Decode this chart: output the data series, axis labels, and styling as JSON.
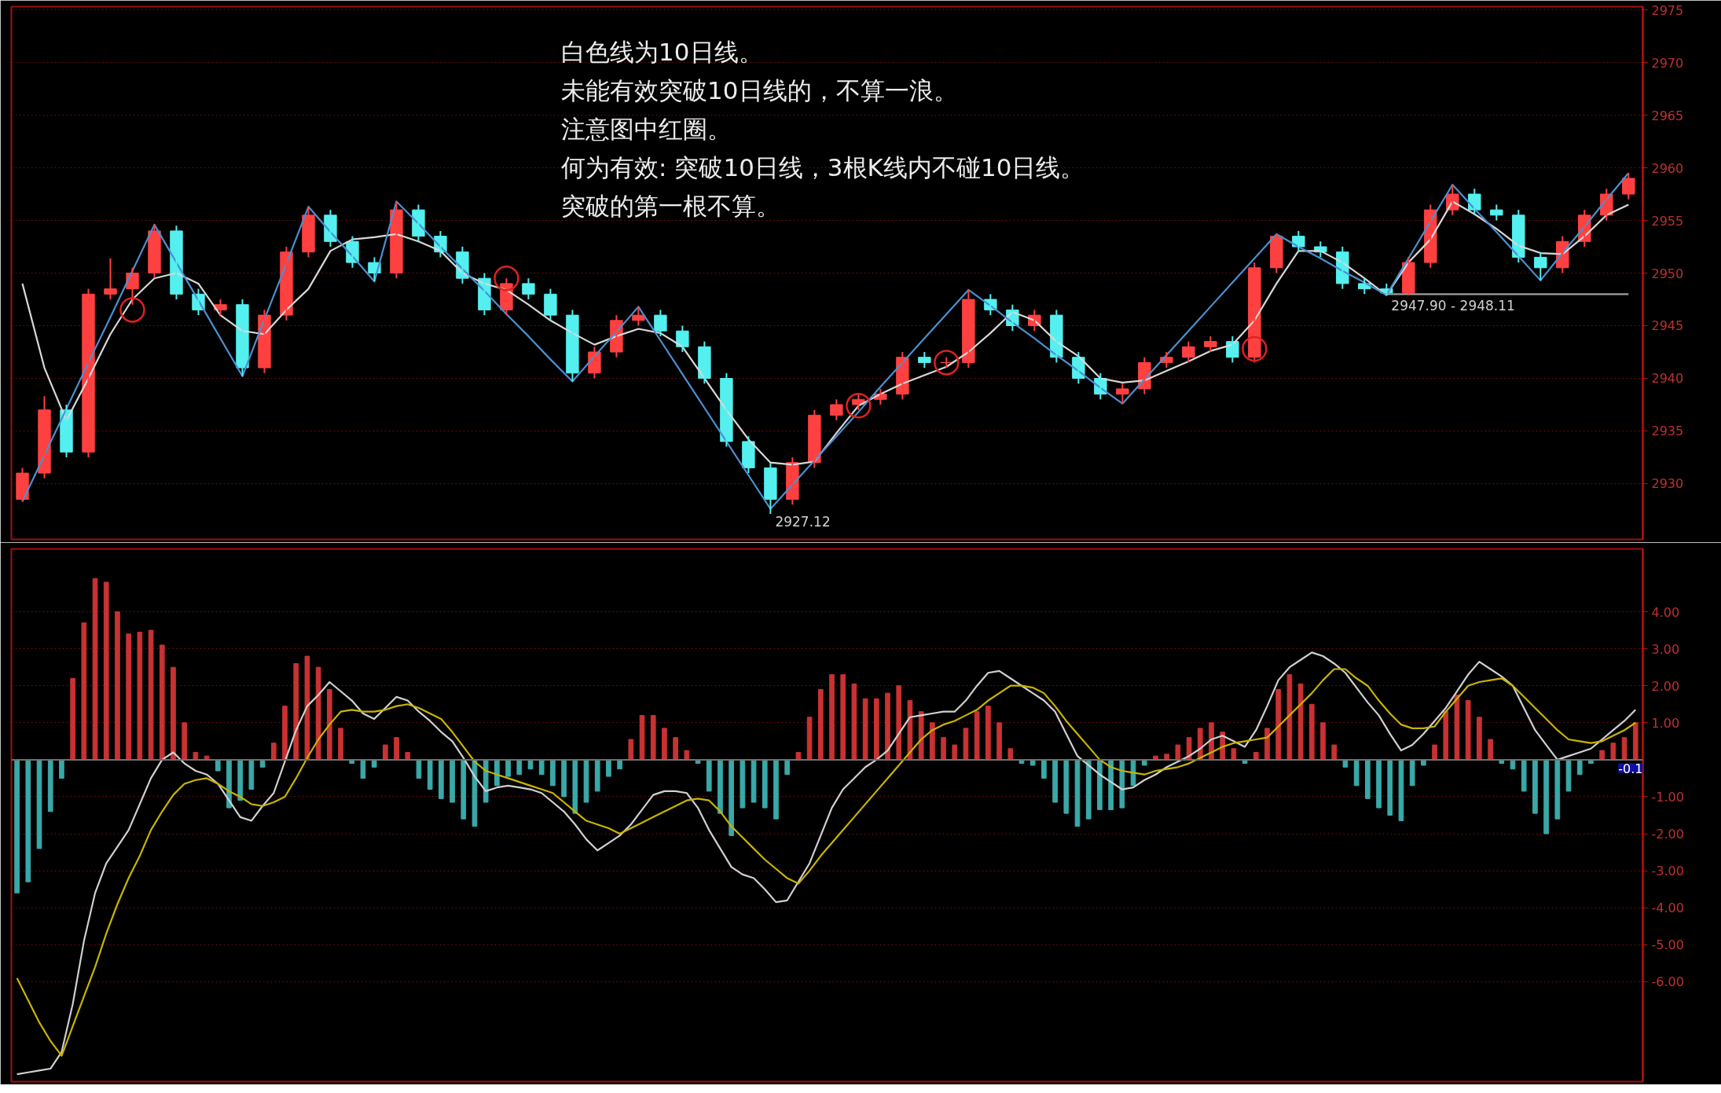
{
  "chart_data": [
    {
      "type": "candlestick",
      "ylim": [
        2924.7,
        2975.3
      ],
      "yticks": [
        2930,
        2935,
        2940,
        2945,
        2950,
        2955,
        2960,
        2965,
        2970,
        2975
      ],
      "grid": "y",
      "tick_labels": "y",
      "categories": [
        null,
        null,
        null,
        null,
        null,
        null,
        null,
        null,
        null,
        null,
        null,
        null,
        null,
        null,
        null,
        null,
        null,
        null,
        null,
        null,
        null,
        null,
        null,
        null,
        null,
        null,
        null,
        null,
        null,
        null,
        null,
        null,
        null,
        null,
        null,
        null,
        null,
        null,
        null,
        null,
        null,
        null,
        null,
        null,
        null,
        null,
        null,
        null,
        null,
        null,
        null,
        null,
        null,
        null,
        null,
        null,
        null,
        null,
        null,
        null,
        null,
        null,
        null,
        null,
        null,
        null,
        null,
        null,
        null,
        null,
        null,
        null,
        null,
        null
      ],
      "ohlc": [
        [
          2928.5,
          2931.5,
          2928.3,
          2931
        ],
        [
          2931,
          2938.3,
          2930.5,
          2937
        ],
        [
          2937,
          2937.5,
          2932.5,
          2933
        ],
        [
          2933,
          2948.5,
          2932.5,
          2948
        ],
        [
          2948,
          2951.4,
          2947.5,
          2948.5
        ],
        [
          2948.5,
          2950.5,
          2947,
          2950
        ],
        [
          2950,
          2954.6,
          2949.5,
          2954
        ],
        [
          2954,
          2954.5,
          2947.5,
          2948
        ],
        [
          2948,
          2948.5,
          2946,
          2946.5
        ],
        [
          2946.5,
          2947.5,
          2946,
          2947
        ],
        [
          2947,
          2947.5,
          2940.2,
          2941
        ],
        [
          2941,
          2946.5,
          2940.5,
          2946
        ],
        [
          2946,
          2952.5,
          2945.5,
          2952
        ],
        [
          2952,
          2956.3,
          2951.5,
          2955.5
        ],
        [
          2955.5,
          2956,
          2952.5,
          2953
        ],
        [
          2953,
          2953.5,
          2950.5,
          2951
        ],
        [
          2951,
          2951.5,
          2949.2,
          2950
        ],
        [
          2950,
          2956.8,
          2949.5,
          2956
        ],
        [
          2956,
          2956.5,
          2953,
          2953.5
        ],
        [
          2953.5,
          2954,
          2951.5,
          2952
        ],
        [
          2952,
          2952.5,
          2949,
          2949.5
        ],
        [
          2949.5,
          2950,
          2946,
          2946.5
        ],
        [
          2946.5,
          2949.5,
          2946,
          2949
        ],
        [
          2949,
          2949.5,
          2947.5,
          2948
        ],
        [
          2948,
          2948.5,
          2945.5,
          2946
        ],
        [
          2946,
          2946.5,
          2939.7,
          2940.5
        ],
        [
          2940.5,
          2943,
          2940,
          2942.5
        ],
        [
          2942.5,
          2946,
          2942,
          2945.5
        ],
        [
          2945.5,
          2946.8,
          2945,
          2946
        ],
        [
          2946,
          2946.5,
          2944,
          2944.5
        ],
        [
          2944.5,
          2945,
          2942.5,
          2943
        ],
        [
          2943,
          2943.5,
          2939.5,
          2940
        ],
        [
          2940,
          2940.5,
          2933.5,
          2934
        ],
        [
          2934,
          2934.5,
          2931,
          2931.5
        ],
        [
          2931.5,
          2932,
          2927.12,
          2928.5
        ],
        [
          2928.5,
          2932.5,
          2928,
          2932
        ],
        [
          2932,
          2937,
          2931.5,
          2936.5
        ],
        [
          2936.5,
          2938,
          2936,
          2937.5
        ],
        [
          2937.5,
          2938.5,
          2937,
          2938
        ],
        [
          2938,
          2939,
          2937.5,
          2938.5
        ],
        [
          2938.5,
          2942.5,
          2938,
          2942
        ],
        [
          2942,
          2942.5,
          2941,
          2941.5
        ],
        [
          2941.5,
          2942,
          2941,
          2941.5
        ],
        [
          2941.5,
          2948.4,
          2941,
          2947.5
        ],
        [
          2947.5,
          2948,
          2946,
          2946.5
        ],
        [
          2946.5,
          2947,
          2944.5,
          2945
        ],
        [
          2945,
          2946.5,
          2944.5,
          2946
        ],
        [
          2946,
          2946.5,
          2941.5,
          2942
        ],
        [
          2942,
          2942.5,
          2939.5,
          2940
        ],
        [
          2940,
          2940.5,
          2938,
          2938.5
        ],
        [
          2938.5,
          2939.5,
          2937.6,
          2939
        ],
        [
          2939,
          2942,
          2938.5,
          2941.5
        ],
        [
          2941.5,
          2942.5,
          2941,
          2942
        ],
        [
          2942,
          2943.5,
          2941.5,
          2943
        ],
        [
          2943,
          2944,
          2942.5,
          2943.5
        ],
        [
          2943.5,
          2944,
          2941.5,
          2942
        ],
        [
          2942,
          2951,
          2941.5,
          2950.5
        ],
        [
          2950.5,
          2953.7,
          2950,
          2953.5
        ],
        [
          2953.5,
          2954,
          2952,
          2952.5
        ],
        [
          2952.5,
          2953,
          2951.5,
          2952
        ],
        [
          2952,
          2952.5,
          2948.5,
          2949
        ],
        [
          2949,
          2949.5,
          2948,
          2948.5
        ],
        [
          2948.5,
          2949,
          2947.9,
          2948.11
        ],
        [
          2948.11,
          2951.5,
          2947.9,
          2951
        ],
        [
          2951,
          2956.5,
          2950.5,
          2956
        ],
        [
          2956,
          2958.4,
          2955.5,
          2957.5
        ],
        [
          2957.5,
          2958,
          2955.5,
          2956
        ],
        [
          2956,
          2956.5,
          2955,
          2955.5
        ],
        [
          2955.5,
          2956,
          2951,
          2951.5
        ],
        [
          2951.5,
          2952,
          2949.3,
          2950.5
        ],
        [
          2950.5,
          2953.5,
          2950,
          2953
        ],
        [
          2953,
          2956,
          2952.5,
          2955.5
        ],
        [
          2955.5,
          2958,
          2955,
          2957.5
        ],
        [
          2957.5,
          2959.5,
          2957,
          2959
        ]
      ],
      "series": [
        {
          "type": "line",
          "color": "#d8d8d8",
          "values": [
            2949,
            2941,
            2936,
            2940,
            2944.2,
            2947.5,
            2949.5,
            2950,
            2949,
            2946,
            2944.5,
            2944.2,
            2946.5,
            2948.5,
            2952.1,
            2953.2,
            2953.4,
            2953.7,
            2953,
            2952.1,
            2950,
            2949,
            2948.4,
            2947,
            2945.5,
            2944.3,
            2943.2,
            2944,
            2944.7,
            2944.3,
            2943,
            2940,
            2937,
            2934.2,
            2932,
            2931.8,
            2932.1,
            2934.8,
            2937.4,
            2938.5,
            2939.5,
            2940.3,
            2941.1,
            2942.5,
            2944.3,
            2946.3,
            2945.5,
            2943.5,
            2942.1,
            2940,
            2939.6,
            2939.8,
            2940.7,
            2941.6,
            2942.6,
            2943.2,
            2945.5,
            2949,
            2952.1,
            2952.1,
            2951,
            2949.5,
            2947.9,
            2951,
            2953.2,
            2956.8,
            2955.6,
            2954.2,
            2952.6,
            2951.9,
            2951.8,
            2953.5,
            2955.5,
            2956.5
          ]
        },
        {
          "type": "line",
          "color": "#4a90d0",
          "values": [
            2928.3,
            2932.7,
            2937.1,
            2941.5,
            2945.8,
            2950.2,
            2954.6,
            2951.0,
            2947.4,
            2943.8,
            2940.2,
            2945.6,
            2950.9,
            2956.3,
            2953.9,
            2951.6,
            2949.2,
            2956.8,
            2954.7,
            2952.5,
            2950.4,
            2948.3,
            2946.1,
            2944.0,
            2941.8,
            2939.7,
            2942.1,
            2944.4,
            2946.8,
            2943.6,
            2940.4,
            2937.2,
            2934.0,
            2930.8,
            2927.6,
            2929.9,
            2932.2,
            2934.5,
            2936.8,
            2939.2,
            2941.5,
            2943.8,
            2946.1,
            2948.4,
            2946.9,
            2945.3,
            2943.8,
            2942.2,
            2940.7,
            2939.1,
            2937.6,
            2939.9,
            2942.2,
            2944.5,
            2946.8,
            2949.1,
            2951.4,
            2953.7,
            2952.5,
            2951.4,
            2950.2,
            2949.1,
            2947.9,
            2951.4,
            2954.9,
            2958.4,
            2956.1,
            2953.9,
            2951.6,
            2949.3,
            2951.9,
            2954.4,
            2957.0,
            2959.5
          ]
        },
        {
          "type": "line",
          "color": "#a0a0a0",
          "values": [
            null,
            null,
            null,
            null,
            null,
            null,
            null,
            null,
            null,
            null,
            null,
            null,
            null,
            null,
            null,
            null,
            null,
            null,
            null,
            null,
            null,
            null,
            null,
            null,
            null,
            null,
            null,
            null,
            null,
            null,
            null,
            null,
            null,
            null,
            null,
            null,
            null,
            null,
            null,
            null,
            null,
            null,
            null,
            null,
            null,
            null,
            null,
            null,
            null,
            null,
            null,
            null,
            null,
            null,
            null,
            null,
            null,
            null,
            null,
            null,
            null,
            null,
            2948,
            2948,
            2948,
            2948,
            2948,
            2948,
            2948,
            2948,
            2948,
            2948,
            2948,
            2948
          ]
        },
        {
          "type": "scatter",
          "color": "#e02020",
          "marker": "circle",
          "values": [
            null,
            null,
            null,
            null,
            null,
            2946.5,
            null,
            null,
            null,
            null,
            null,
            null,
            null,
            null,
            null,
            null,
            null,
            null,
            null,
            null,
            null,
            null,
            2949.5,
            null,
            null,
            null,
            null,
            null,
            null,
            null,
            null,
            null,
            null,
            null,
            null,
            null,
            null,
            null,
            2937.4,
            null,
            null,
            null,
            2941.5,
            null,
            null,
            null,
            null,
            null,
            null,
            null,
            null,
            null,
            null,
            null,
            null,
            null,
            2942.8,
            null,
            null,
            null,
            null,
            null,
            null,
            null,
            null,
            null,
            null,
            null,
            null,
            null,
            null,
            null,
            null,
            null
          ]
        }
      ],
      "annotations": [
        "白色线为10日线。",
        "未能有效突破10日线的，不算一浪。",
        "注意图中红圈。",
        "何为有效: 突破10日线，3根K线内不碰10日线。",
        "突破的第一根不算。",
        {
          "text": "2947.90 - 2948.11",
          "y": 2947.9
        },
        "2927.12"
      ]
    },
    {
      "type": "bar",
      "ylim": [
        -8.7,
        5.7
      ],
      "yticks": [
        {
          "value": 4,
          "label": "4.00"
        },
        {
          "value": 3,
          "label": "3.00"
        },
        {
          "value": 2,
          "label": "2.00"
        },
        {
          "value": 1,
          "label": "1.00"
        },
        {
          "value": -1,
          "label": "-1.00"
        },
        {
          "value": -2,
          "label": "-2.00"
        },
        {
          "value": -3,
          "label": "-3.00"
        },
        {
          "value": -4,
          "label": "-4.00"
        },
        {
          "value": -5,
          "label": "-5.00"
        },
        {
          "value": -6,
          "label": "-6.00"
        }
      ],
      "grid": "y",
      "tick_labels": "y",
      "categories": [
        null,
        null,
        null,
        null,
        null,
        null,
        null,
        null,
        null,
        null,
        null,
        null,
        null,
        null,
        null,
        null,
        null,
        null,
        null,
        null,
        null,
        null,
        null,
        null,
        null,
        null,
        null,
        null,
        null,
        null,
        null,
        null,
        null,
        null,
        null,
        null,
        null,
        null,
        null,
        null,
        null,
        null,
        null,
        null,
        null,
        null,
        null,
        null,
        null,
        null,
        null,
        null,
        null,
        null,
        null,
        null,
        null,
        null,
        null,
        null,
        null,
        null,
        null,
        null,
        null,
        null,
        null,
        null,
        null,
        null,
        null,
        null,
        null,
        null,
        null,
        null,
        null,
        null,
        null,
        null,
        null,
        null,
        null,
        null,
        null,
        null,
        null,
        null,
        null,
        null,
        null,
        null,
        null,
        null,
        null,
        null,
        null,
        null,
        null,
        null,
        null,
        null,
        null,
        null,
        null,
        null,
        null,
        null,
        null,
        null,
        null,
        null,
        null,
        null,
        null,
        null,
        null,
        null,
        null,
        null,
        null,
        null,
        null,
        null,
        null,
        null,
        null,
        null,
        null,
        null,
        null,
        null,
        null,
        null,
        null,
        null,
        null,
        null,
        null,
        null,
        null,
        null,
        null,
        null,
        null,
        null
      ],
      "series": [
        {
          "type": "bar",
          "values": [
            -3.6,
            -3.3,
            -2.4,
            -1.4,
            -0.5,
            2.2,
            3.7,
            4.9,
            4.8,
            4.0,
            3.4,
            3.45,
            3.5,
            3.1,
            2.5,
            1.0,
            0.2,
            0.1,
            -0.3,
            -1.3,
            -1.1,
            -0.8,
            -0.2,
            0.45,
            1.45,
            2.6,
            2.8,
            2.5,
            1.9,
            0.85,
            -0.1,
            -0.5,
            -0.2,
            0.4,
            0.6,
            0.2,
            -0.5,
            -0.8,
            -1.05,
            -1.15,
            -1.6,
            -1.8,
            -1.15,
            -0.7,
            -0.45,
            -0.4,
            -0.25,
            -0.4,
            -0.7,
            -1.0,
            -1.45,
            -1.15,
            -0.85,
            -0.45,
            -0.25,
            0.55,
            1.2,
            1.2,
            0.85,
            0.6,
            0.25,
            -0.1,
            -0.85,
            -1.45,
            -2.05,
            -1.3,
            -1.15,
            -1.3,
            -1.6,
            -0.4,
            0.2,
            1.15,
            1.9,
            2.3,
            2.3,
            2.05,
            1.65,
            1.65,
            1.8,
            2.0,
            1.6,
            1.3,
            1.0,
            0.6,
            0.4,
            0.85,
            1.3,
            1.45,
            1.0,
            0.3,
            -0.1,
            -0.15,
            -0.5,
            -1.15,
            -1.45,
            -1.8,
            -1.6,
            -1.35,
            -1.35,
            -1.3,
            -0.7,
            -0.15,
            0.1,
            0.15,
            0.4,
            0.6,
            0.85,
            1.0,
            0.75,
            0.3,
            -0.1,
            0.2,
            0.85,
            1.9,
            2.3,
            2.05,
            1.5,
            1.0,
            0.4,
            -0.2,
            -0.7,
            -1.05,
            -1.3,
            -1.5,
            -1.65,
            -0.7,
            -0.15,
            0.4,
            1.3,
            1.75,
            1.6,
            1.15,
            0.55,
            -0.1,
            -0.25,
            -0.85,
            -1.45,
            -2.0,
            -1.6,
            -0.85,
            -0.4,
            -0.1,
            0.25,
            0.45,
            0.6,
            1.0
          ],
          "colors": [
            "#3aa8a8",
            "#3aa8a8",
            "#3aa8a8",
            "#3aa8a8",
            "#3aa8a8",
            "#c83232",
            "#c83232",
            "#c83232",
            "#c83232",
            "#c83232",
            "#c83232",
            "#c83232",
            "#c83232",
            "#c83232",
            "#c83232",
            "#c83232",
            "#c83232",
            "#c83232",
            "#3aa8a8",
            "#3aa8a8",
            "#3aa8a8",
            "#3aa8a8",
            "#3aa8a8",
            "#c83232",
            "#c83232",
            "#c83232",
            "#c83232",
            "#c83232",
            "#c83232",
            "#c83232",
            "#3aa8a8",
            "#3aa8a8",
            "#3aa8a8",
            "#c83232",
            "#c83232",
            "#c83232",
            "#3aa8a8",
            "#3aa8a8",
            "#3aa8a8",
            "#3aa8a8",
            "#3aa8a8",
            "#3aa8a8",
            "#3aa8a8",
            "#3aa8a8",
            "#3aa8a8",
            "#3aa8a8",
            "#3aa8a8",
            "#3aa8a8",
            "#3aa8a8",
            "#3aa8a8",
            "#3aa8a8",
            "#3aa8a8",
            "#3aa8a8",
            "#3aa8a8",
            "#3aa8a8",
            "#c83232",
            "#c83232",
            "#c83232",
            "#c83232",
            "#c83232",
            "#c83232",
            "#3aa8a8",
            "#3aa8a8",
            "#3aa8a8",
            "#3aa8a8",
            "#3aa8a8",
            "#3aa8a8",
            "#3aa8a8",
            "#3aa8a8",
            "#3aa8a8",
            "#c83232",
            "#c83232",
            "#c83232",
            "#c83232",
            "#c83232",
            "#c83232",
            "#c83232",
            "#c83232",
            "#c83232",
            "#c83232",
            "#c83232",
            "#c83232",
            "#c83232",
            "#c83232",
            "#c83232",
            "#c83232",
            "#c83232",
            "#c83232",
            "#c83232",
            "#c83232",
            "#3aa8a8",
            "#3aa8a8",
            "#3aa8a8",
            "#3aa8a8",
            "#3aa8a8",
            "#3aa8a8",
            "#3aa8a8",
            "#3aa8a8",
            "#3aa8a8",
            "#3aa8a8",
            "#3aa8a8",
            "#3aa8a8",
            "#c83232",
            "#c83232",
            "#c83232",
            "#c83232",
            "#c83232",
            "#c83232",
            "#c83232",
            "#c83232",
            "#3aa8a8",
            "#c83232",
            "#c83232",
            "#c83232",
            "#c83232",
            "#c83232",
            "#c83232",
            "#c83232",
            "#c83232",
            "#3aa8a8",
            "#3aa8a8",
            "#3aa8a8",
            "#3aa8a8",
            "#3aa8a8",
            "#3aa8a8",
            "#3aa8a8",
            "#3aa8a8",
            "#c83232",
            "#c83232",
            "#c83232",
            "#c83232",
            "#c83232",
            "#c83232",
            "#3aa8a8",
            "#3aa8a8",
            "#3aa8a8",
            "#3aa8a8",
            "#3aa8a8",
            "#3aa8a8",
            "#3aa8a8",
            "#3aa8a8",
            "#3aa8a8",
            "#c83232",
            "#c83232",
            "#c83232",
            "#c83232"
          ]
        },
        {
          "type": "line",
          "color": "#d0d0d0",
          "values": [
            -8.5,
            -8.45,
            -8.4,
            -8.35,
            -7.9,
            -6.6,
            -4.9,
            -3.6,
            -2.8,
            -2.35,
            -1.9,
            -1.2,
            -0.5,
            0.0,
            0.2,
            -0.1,
            -0.3,
            -0.4,
            -0.65,
            -1.1,
            -1.55,
            -1.65,
            -1.25,
            -0.9,
            -0.05,
            0.8,
            1.45,
            1.75,
            2.1,
            1.85,
            1.6,
            1.25,
            1.1,
            1.4,
            1.7,
            1.6,
            1.3,
            1.05,
            0.75,
            0.5,
            0.05,
            -0.45,
            -0.85,
            -0.75,
            -0.7,
            -0.75,
            -0.8,
            -0.9,
            -1.15,
            -1.4,
            -1.75,
            -2.15,
            -2.45,
            -2.25,
            -2.05,
            -1.75,
            -1.35,
            -0.95,
            -0.85,
            -0.85,
            -0.9,
            -1.3,
            -1.9,
            -2.4,
            -2.9,
            -3.1,
            -3.2,
            -3.5,
            -3.85,
            -3.8,
            -3.3,
            -2.8,
            -2.05,
            -1.3,
            -0.8,
            -0.5,
            -0.2,
            0.0,
            0.25,
            0.7,
            1.15,
            1.2,
            1.25,
            1.3,
            1.3,
            1.6,
            2.0,
            2.35,
            2.4,
            2.2,
            2.0,
            1.8,
            1.6,
            1.3,
            0.7,
            0.1,
            -0.15,
            -0.4,
            -0.6,
            -0.8,
            -0.75,
            -0.55,
            -0.4,
            -0.2,
            -0.05,
            0.1,
            0.3,
            0.55,
            0.65,
            0.5,
            0.35,
            0.8,
            1.45,
            2.15,
            2.5,
            2.7,
            2.9,
            2.8,
            2.6,
            2.35,
            1.95,
            1.55,
            1.2,
            0.7,
            0.25,
            0.4,
            0.7,
            1.05,
            1.4,
            1.85,
            2.3,
            2.65,
            2.45,
            2.25,
            2.0,
            1.4,
            0.8,
            0.4,
            0.0,
            0.1,
            0.2,
            0.3,
            0.55,
            0.8,
            1.05,
            1.35
          ]
        },
        {
          "type": "line",
          "color": "#c8b400",
          "values": [
            -5.9,
            -6.5,
            -7.1,
            -7.6,
            -8.0,
            -7.2,
            -6.4,
            -5.6,
            -4.7,
            -3.9,
            -3.2,
            -2.6,
            -1.9,
            -1.4,
            -0.95,
            -0.65,
            -0.55,
            -0.5,
            -0.65,
            -0.85,
            -1.0,
            -1.2,
            -1.25,
            -1.15,
            -1.0,
            -0.5,
            0.05,
            0.55,
            0.95,
            1.3,
            1.35,
            1.3,
            1.3,
            1.35,
            1.45,
            1.5,
            1.4,
            1.25,
            1.1,
            0.75,
            0.35,
            -0.05,
            -0.3,
            -0.4,
            -0.5,
            -0.6,
            -0.7,
            -0.8,
            -0.9,
            -1.15,
            -1.4,
            -1.65,
            -1.75,
            -1.85,
            -2.0,
            -1.85,
            -1.7,
            -1.55,
            -1.4,
            -1.25,
            -1.1,
            -1.05,
            -1.1,
            -1.4,
            -1.8,
            -2.1,
            -2.4,
            -2.7,
            -2.95,
            -3.2,
            -3.35,
            -3.0,
            -2.6,
            -2.25,
            -1.9,
            -1.55,
            -1.2,
            -0.85,
            -0.5,
            -0.15,
            0.2,
            0.55,
            0.8,
            0.95,
            1.05,
            1.2,
            1.35,
            1.6,
            1.8,
            2.0,
            2.0,
            1.95,
            1.8,
            1.45,
            1.05,
            0.7,
            0.35,
            0.0,
            -0.2,
            -0.3,
            -0.35,
            -0.4,
            -0.3,
            -0.25,
            -0.2,
            -0.1,
            0.05,
            0.2,
            0.35,
            0.45,
            0.5,
            0.55,
            0.6,
            0.9,
            1.2,
            1.5,
            1.8,
            2.15,
            2.45,
            2.45,
            2.2,
            2.0,
            1.6,
            1.25,
            0.95,
            0.85,
            0.85,
            0.9,
            1.3,
            1.65,
            2.0,
            2.1,
            2.15,
            2.2,
            2.0,
            1.7,
            1.4,
            1.1,
            0.8,
            0.55,
            0.5,
            0.45,
            0.5,
            0.65,
            0.8,
            1.0
          ]
        }
      ],
      "ref_lines": [
        {
          "axis": "y",
          "value": 0,
          "color": "#707070"
        }
      ],
      "annotations": [
        {
          "text": "-0.1",
          "y": -0.1
        }
      ]
    }
  ]
}
